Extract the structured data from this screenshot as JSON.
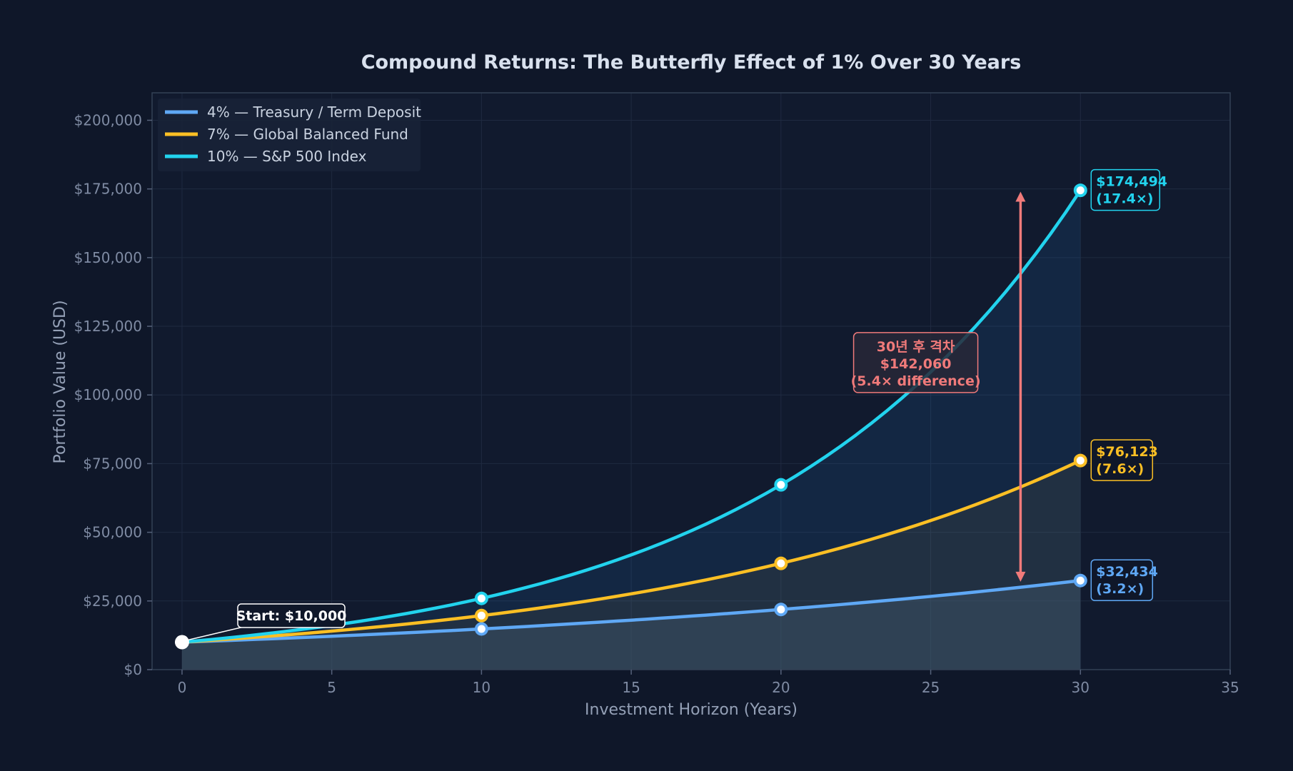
{
  "chart_data": {
    "type": "line",
    "title": "Compound Returns: The Butterfly Effect of 1% Over 30 Years",
    "xlabel": "Investment Horizon (Years)",
    "ylabel": "Portfolio Value (USD)",
    "xlim": [
      -1,
      35
    ],
    "ylim": [
      0,
      210000
    ],
    "x_ticks": [
      0,
      5,
      10,
      15,
      20,
      25,
      30,
      35
    ],
    "x_tick_labels": [
      "0",
      "5",
      "10",
      "15",
      "20",
      "25",
      "30",
      "35"
    ],
    "y_ticks": [
      0,
      25000,
      50000,
      75000,
      100000,
      125000,
      150000,
      175000,
      200000
    ],
    "y_tick_labels": [
      "$0",
      "$25,000",
      "$50,000",
      "$75,000",
      "$100,000",
      "$125,000",
      "$150,000",
      "$175,000",
      "$200,000"
    ],
    "grid": true,
    "legend_position": "top-left",
    "principal": 10000,
    "series": [
      {
        "name": "4% — Treasury / Term Deposit",
        "rate": 0.04,
        "color": "#5fa8f5",
        "marker_years": [
          10,
          20,
          30
        ],
        "end_value_label": "$32,434",
        "end_multiple_label": "(3.2×)"
      },
      {
        "name": "7% — Global Balanced Fund",
        "rate": 0.07,
        "color": "#fbbf24",
        "marker_years": [
          10,
          20,
          30
        ],
        "end_value_label": "$76,123",
        "end_multiple_label": "(7.6×)"
      },
      {
        "name": "10% — S&P 500 Index",
        "rate": 0.1,
        "color": "#22d3ee",
        "marker_years": [
          10,
          20,
          30
        ],
        "end_value_label": "$174,494",
        "end_multiple_label": "(17.4×)"
      }
    ],
    "annotations": {
      "start_label": "Start: $10,000",
      "start_point": [
        0,
        10000
      ],
      "gap_arrow": {
        "x": 28,
        "y_from": 32000,
        "y_to": 174000,
        "color": "#f07a7a"
      },
      "gap_text": [
        "30년 후 격차",
        "$142,060",
        "(5.4× difference)"
      ],
      "gap_text_anchor": [
        24.5,
        111000
      ]
    }
  }
}
